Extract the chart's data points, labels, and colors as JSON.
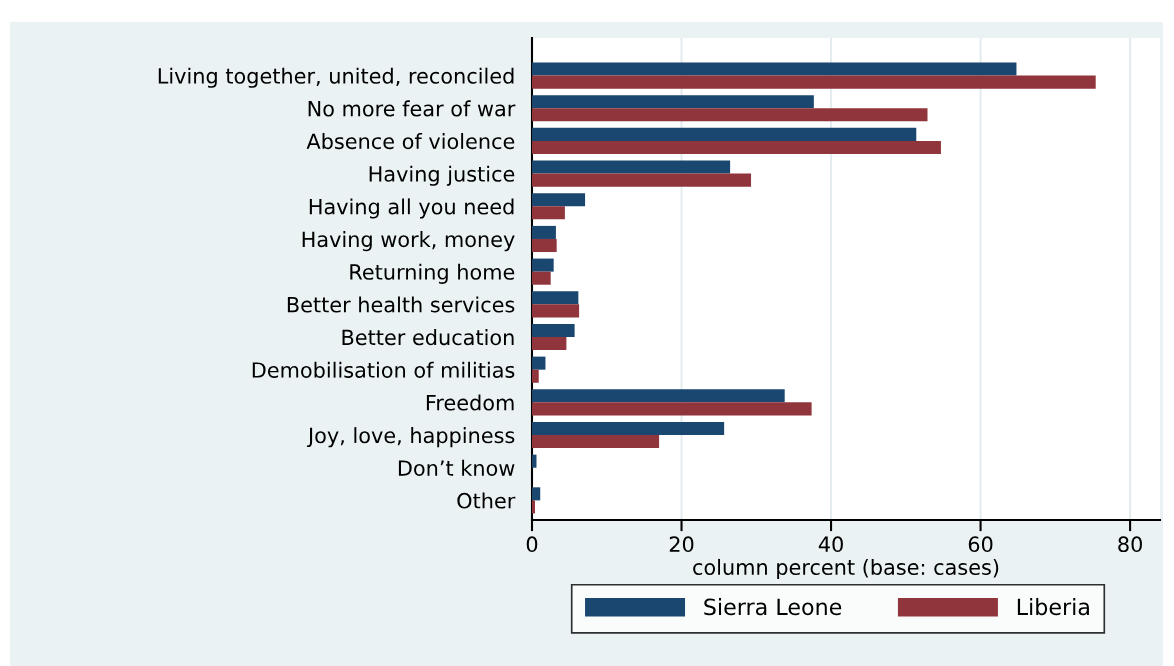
{
  "chart_data": {
    "type": "bar",
    "orientation": "horizontal",
    "xlabel": "column percent (base: cases)",
    "categories": [
      "Living together, united, reconciled",
      "No more fear of war",
      "Absence of violence",
      "Having justice",
      "Having all you need",
      "Having work, money",
      "Returning home",
      "Better health services",
      "Better education",
      "Demobilisation of militias",
      "Freedom",
      "Joy, love, happiness",
      "Don’t know",
      "Other"
    ],
    "series": [
      {
        "name": "Sierra Leone",
        "color": "#1a476f",
        "values": [
          64.8,
          37.7,
          51.4,
          26.5,
          7.1,
          3.2,
          2.9,
          6.2,
          5.7,
          1.8,
          33.8,
          25.7,
          0.6,
          1.1
        ]
      },
      {
        "name": "Liberia",
        "color": "#90353b",
        "values": [
          75.4,
          52.9,
          54.7,
          29.3,
          4.4,
          3.3,
          2.5,
          6.3,
          4.6,
          0.9,
          37.4,
          17.0,
          0,
          0.4
        ]
      }
    ],
    "xlim": [
      0,
      84
    ],
    "xticks": [
      0,
      20,
      40,
      60,
      80
    ],
    "grid": "x",
    "legend": "bottom"
  }
}
